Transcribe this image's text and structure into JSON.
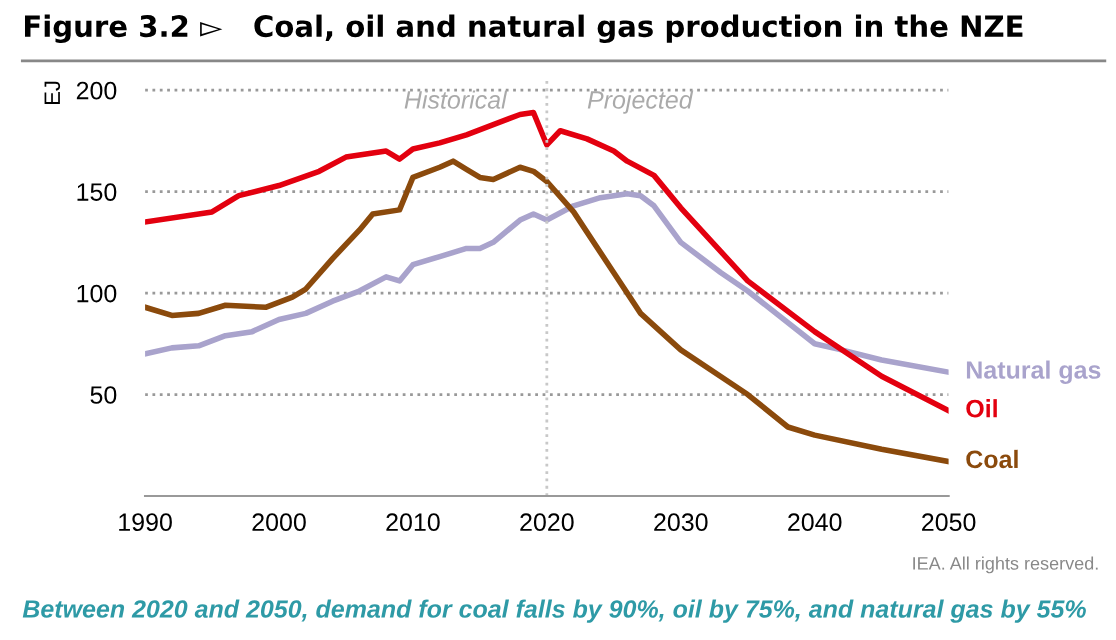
{
  "chart_data": {
    "type": "line",
    "title": "Figure 3.2 ▻   Coal, oil and natural gas production in the NZE",
    "ylabel": "EJ",
    "series": [
      {
        "name": "Natural gas",
        "color": "#a9a3cc",
        "x": [
          1990,
          1992,
          1994,
          1996,
          1998,
          2000,
          2002,
          2004,
          2006,
          2008,
          2009,
          2010,
          2012,
          2014,
          2015,
          2016,
          2018,
          2019,
          2020,
          2022,
          2024,
          2026,
          2027,
          2028,
          2030,
          2033,
          2035,
          2040,
          2042,
          2045,
          2050
        ],
        "values": [
          70,
          73,
          74,
          79,
          81,
          87,
          90,
          96,
          101,
          108,
          106,
          114,
          118,
          122,
          122,
          125,
          136,
          139,
          136,
          143,
          147,
          149,
          148,
          143,
          125,
          110,
          101,
          75,
          72,
          67,
          61
        ]
      },
      {
        "name": "Oil",
        "color": "#e3000f",
        "x": [
          1990,
          1995,
          1997,
          2000,
          2003,
          2005,
          2008,
          2009,
          2010,
          2012,
          2014,
          2016,
          2018,
          2019,
          2020,
          2021,
          2023,
          2025,
          2026,
          2028,
          2030,
          2035,
          2040,
          2045,
          2050
        ],
        "values": [
          135,
          140,
          148,
          153,
          160,
          167,
          170,
          166,
          171,
          174,
          178,
          183,
          188,
          189,
          173,
          180,
          176,
          170,
          165,
          158,
          142,
          106,
          81,
          59,
          42
        ]
      },
      {
        "name": "Coal",
        "color": "#8b4a0c",
        "x": [
          1990,
          1992,
          1994,
          1996,
          1999,
          2001,
          2002,
          2004,
          2006,
          2007,
          2009,
          2010,
          2012,
          2013,
          2014,
          2015,
          2016,
          2018,
          2019,
          2020,
          2022,
          2025,
          2027,
          2030,
          2035,
          2038,
          2040,
          2045,
          2050
        ],
        "values": [
          93,
          89,
          90,
          94,
          93,
          98,
          102,
          117,
          131,
          139,
          141,
          157,
          162,
          165,
          161,
          157,
          156,
          162,
          160,
          155,
          140,
          110,
          90,
          72,
          50,
          34,
          30,
          23,
          17
        ]
      }
    ],
    "xlim": [
      1990,
      2050
    ],
    "xticks": [
      1990,
      2000,
      2010,
      2020,
      2030,
      2040,
      2050
    ],
    "ylim": [
      0,
      205
    ],
    "yticks": [
      50,
      100,
      150,
      200
    ],
    "grid": "y",
    "marker": "none",
    "line_style": "solid",
    "ref_lines": [
      {
        "axis": "x",
        "value": 2020,
        "color": "#c8c8c8",
        "line_style": "dotted"
      }
    ],
    "annotations": [
      "Historical",
      "Projected",
      "IEA. All rights reserved.",
      "Between 2020 and 2050, demand for coal falls by 90%, oil by 75%, and natural gas by 55%"
    ]
  }
}
